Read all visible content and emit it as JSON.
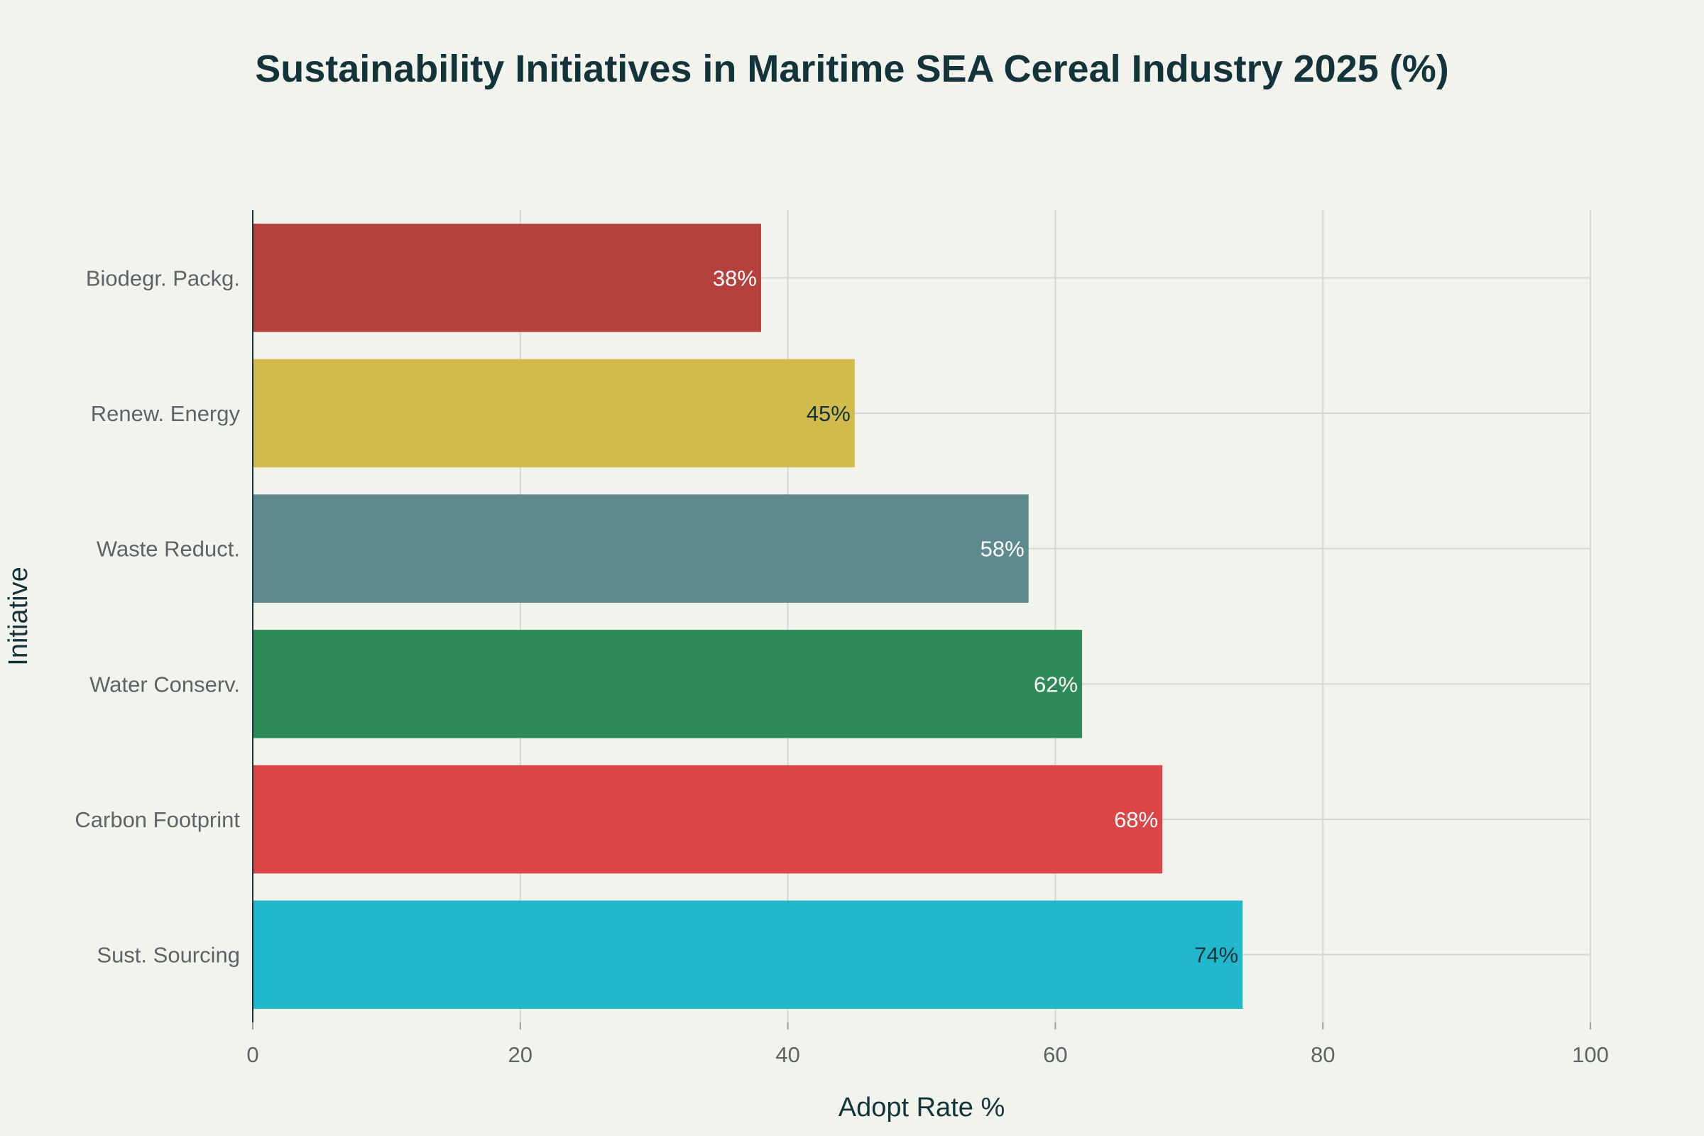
{
  "chart_data": {
    "type": "bar",
    "orientation": "horizontal",
    "title": "Sustainability Initiatives in Maritime SEA Cereal Industry 2025 (%)",
    "xlabel": "Adopt Rate %",
    "ylabel": "Initiative",
    "xlim": [
      0,
      100
    ],
    "xticks": [
      0,
      20,
      40,
      60,
      80,
      100
    ],
    "grid": true,
    "categories": [
      "Sust. Sourcing",
      "Carbon Footprint",
      "Water Conserv.",
      "Waste Reduct.",
      "Renew. Energy",
      "Biodegr. Packg."
    ],
    "values": [
      74,
      68,
      62,
      58,
      45,
      38
    ],
    "labels": [
      "74%",
      "68%",
      "62%",
      "58%",
      "45%",
      "38%"
    ],
    "colors": [
      "#21b8cd",
      "#db4545",
      "#2e8b57",
      "#5e8a8d",
      "#d2ba4c",
      "#b4413c"
    ],
    "label_colors": [
      "#13343b",
      "#ffffff",
      "#ffffff",
      "#ffffff",
      "#13343b",
      "#ffffff"
    ]
  }
}
